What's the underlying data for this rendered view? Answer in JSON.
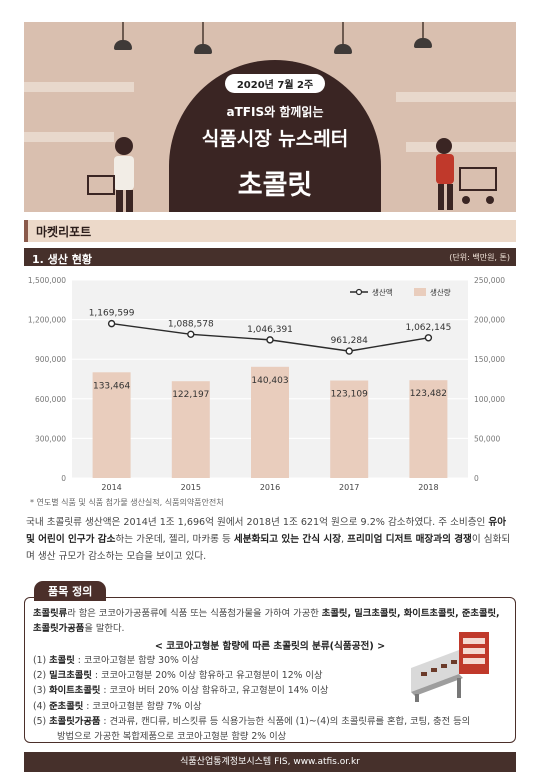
{
  "banner": {
    "date": "2020년 7월 2주",
    "subtitle": "aTFIS와 함께읽는",
    "title": "식품시장 뉴스레터",
    "item": "초콜릿"
  },
  "section": {
    "title": "마켓리포트",
    "subsection": "1. 생산 현황",
    "unit": "(단위: 백만원, 톤)"
  },
  "chart_data": {
    "type": "bar",
    "categories": [
      "2014",
      "2015",
      "2016",
      "2017",
      "2018"
    ],
    "series": [
      {
        "name": "생산량",
        "kind": "bar",
        "axis": "right",
        "color": "#e9cdbd",
        "values": [
          133464,
          122197,
          140403,
          123109,
          123482
        ],
        "labels": [
          "133,464",
          "122,197",
          "140,403",
          "123,109",
          "123,482"
        ]
      },
      {
        "name": "생산액",
        "kind": "line",
        "axis": "left",
        "color": "#2b2b2b",
        "values": [
          1169599,
          1088578,
          1046391,
          961284,
          1062145
        ],
        "labels": [
          "1,169,599",
          "1,088,578",
          "1,046,391",
          "961,284",
          "1,062,145"
        ]
      }
    ],
    "left_axis": {
      "ylim": [
        0,
        1500000
      ],
      "ticks": [
        "0",
        "300,000",
        "600,000",
        "900,000",
        "1,200,000",
        "1,500,000"
      ]
    },
    "right_axis": {
      "ylim": [
        0,
        250000
      ],
      "ticks": [
        "0",
        "50,000",
        "100,000",
        "150,000",
        "200,000",
        "250,000"
      ]
    },
    "legend_position": "top-right",
    "grid": true,
    "background": "#f2f2f2"
  },
  "chart_note": "* 연도별 식품 및 식품 첨가물 생산실적, 식품의약품안전처",
  "paragraph": {
    "t1": "국내 초콜릿류 생산액은 2014년 1조 1,696억 원에서 2018년 1조 621억 원으로 9.2% 감소하였다. 주 소비층인 ",
    "b1": "유아 및 어린이 인구가 감소",
    "t2": "하는 가운데, 젤리, 마카롱 등 ",
    "b2": "세분화되고 있는 간식 시장",
    "t3": ", ",
    "b3": "프리미엄 디저트 매장과의 경쟁",
    "t4": "이 심화되며 생산 규모가 감소하는 모습을 보이고 있다."
  },
  "definition": {
    "tab": "품목 정의",
    "b1": "초콜릿류",
    "t1": "라 함은 코코아가공품류에 식품 또는 식품첨가물을 가하여 가공한 ",
    "b2": "초콜릿, 밀크초콜릿, 화이트초콜릿, 준초콜릿, 초콜릿가공품",
    "t2": "을 말한다.",
    "class_title": "< 코코아고형분 함량에 따른 초콜릿의 분류(식품공전) >",
    "items": [
      {
        "no": "(1)",
        "name": "초콜릿",
        "desc": " : 코코아고형분 함량 30% 이상"
      },
      {
        "no": "(2)",
        "name": "밀크초콜릿",
        "desc": " : 코코아고형분 20% 이상 함유하고 유고형분이 12% 이상"
      },
      {
        "no": "(3)",
        "name": "화이트초콜릿",
        "desc": " : 코코아 버터 20% 이상 함유하고, 유고형분이 14% 이상"
      },
      {
        "no": "(4)",
        "name": "준초콜릿",
        "desc": " : 코코아고형분 함량 7% 이상"
      },
      {
        "no": "(5)",
        "name": "초콜릿가공품",
        "desc": " : 견과류, 캔디류, 비스킷류 등 식용가능한 식품에 (1)~(4)의 초콜릿류를 혼합, 코팅, 충전 등의"
      }
    ],
    "item5_cont": "방법으로 가공한 복합제품으로 코코아고형분 함량 2% 이상"
  },
  "footer": "식품산업통계정보시스템 FIS, www.atfis.or.kr"
}
